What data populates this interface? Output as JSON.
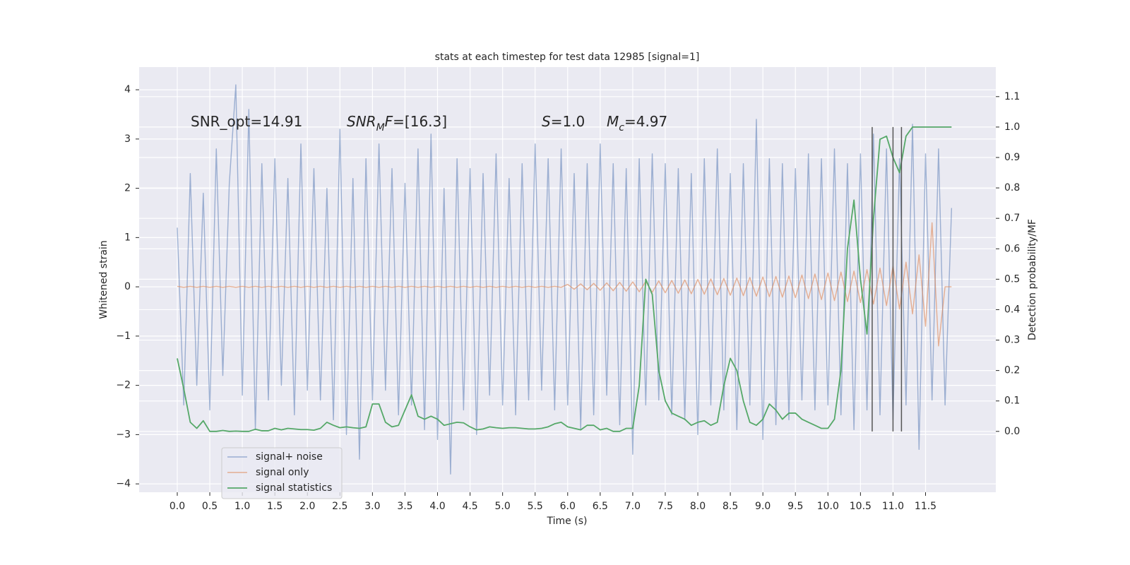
{
  "chart_data": {
    "type": "line",
    "title": "stats at each timestep for test data 12985 [signal=1]",
    "x_label": "Time (s)",
    "y_label": "Whitened strain",
    "y2_label": "Detection probability/MF",
    "xlim": [
      -0.586,
      12.58
    ],
    "ylim": [
      -4.17,
      4.46
    ],
    "y2lim": [
      -0.2,
      1.197
    ],
    "xticks": [
      {
        "value": 0,
        "label": "0.0"
      },
      0.5,
      {
        "value": 1,
        "label": "1.0"
      },
      1.5,
      {
        "value": 2,
        "label": "2.0"
      },
      2.5,
      {
        "value": 3,
        "label": "3.0"
      },
      3.5,
      {
        "value": 4,
        "label": "4.0"
      },
      4.5,
      {
        "value": 5,
        "label": "5.0"
      },
      5.5,
      {
        "value": 6,
        "label": "6.0"
      },
      6.5,
      {
        "value": 7,
        "label": "7.0"
      },
      7.5,
      {
        "value": 8,
        "label": "8.0"
      },
      8.5,
      {
        "value": 9,
        "label": "9.0"
      },
      9.5,
      {
        "value": 10,
        "label": "10.0"
      },
      10.5,
      {
        "value": 11,
        "label": "11.0"
      },
      11.5
    ],
    "yticks": [
      {
        "value": -4,
        "label": "−4"
      },
      {
        "value": -3,
        "label": "−3"
      },
      {
        "value": -2,
        "label": "−2"
      },
      {
        "value": -1,
        "label": "−1"
      },
      0,
      1,
      2,
      3,
      4
    ],
    "y2ticks": [
      {
        "value": 0,
        "label": "0.0"
      },
      0.1,
      0.2,
      0.3,
      0.4,
      0.5,
      0.6,
      0.7,
      0.8,
      0.9,
      {
        "value": 1,
        "label": "1.0"
      },
      1.1
    ],
    "grid": true,
    "legend": "lower left",
    "x": [
      0.0,
      0.1,
      0.2,
      0.3,
      0.4,
      0.5,
      0.6,
      0.7,
      0.8,
      0.9,
      1.0,
      1.1,
      1.2,
      1.3,
      1.4,
      1.5,
      1.6,
      1.7,
      1.8,
      1.9,
      2.0,
      2.1,
      2.2,
      2.3,
      2.4,
      2.5,
      2.6,
      2.7,
      2.8,
      2.9,
      3.0,
      3.1,
      3.2,
      3.3,
      3.4,
      3.5,
      3.6,
      3.7,
      3.8,
      3.9,
      4.0,
      4.1,
      4.2,
      4.3,
      4.4,
      4.5,
      4.6,
      4.7,
      4.8,
      4.9,
      5.0,
      5.1,
      5.2,
      5.3,
      5.4,
      5.5,
      5.6,
      5.7,
      5.8,
      5.9,
      6.0,
      6.1,
      6.2,
      6.3,
      6.4,
      6.5,
      6.6,
      6.7,
      6.8,
      6.9,
      7.0,
      7.1,
      7.2,
      7.3,
      7.4,
      7.5,
      7.6,
      7.7,
      7.8,
      7.9,
      8.0,
      8.1,
      8.2,
      8.3,
      8.4,
      8.5,
      8.6,
      8.7,
      8.8,
      8.9,
      9.0,
      9.1,
      9.2,
      9.3,
      9.4,
      9.5,
      9.6,
      9.7,
      9.8,
      9.9,
      10.0,
      10.1,
      10.2,
      10.3,
      10.4,
      10.5,
      10.6,
      10.7,
      10.8,
      10.9,
      11.0,
      11.1,
      11.2,
      11.3,
      11.4,
      11.5,
      11.6,
      11.7,
      11.8,
      11.9
    ],
    "series": [
      {
        "name": "signal+ noise",
        "color": "#4c72b0",
        "values": [
          1.2,
          -2.4,
          2.3,
          -2.0,
          1.9,
          -2.5,
          2.8,
          -1.8,
          2.1,
          4.1,
          -2.2,
          3.6,
          -2.9,
          2.5,
          -2.3,
          2.6,
          -2.0,
          2.2,
          -2.6,
          2.9,
          -2.1,
          2.4,
          -2.3,
          2.0,
          -2.7,
          3.2,
          -3.0,
          2.2,
          -3.5,
          2.6,
          -2.3,
          2.9,
          -2.1,
          2.4,
          -2.6,
          2.1,
          -2.4,
          2.8,
          -2.9,
          3.1,
          -3.1,
          2.0,
          -3.8,
          2.6,
          -2.5,
          2.4,
          -3.0,
          2.3,
          -2.2,
          2.7,
          -2.4,
          2.2,
          -2.6,
          2.5,
          -2.3,
          2.9,
          -2.1,
          2.6,
          -2.5,
          2.8,
          -2.4,
          2.3,
          -2.9,
          2.5,
          -2.6,
          2.9,
          -2.2,
          2.5,
          -2.8,
          2.4,
          -3.4,
          2.6,
          -2.4,
          2.7,
          -2.3,
          2.5,
          -2.6,
          2.4,
          -2.7,
          2.3,
          -3.0,
          2.6,
          -2.4,
          2.8,
          -2.5,
          2.3,
          -2.9,
          2.5,
          -2.4,
          3.4,
          -3.1,
          2.6,
          -2.8,
          2.5,
          -2.7,
          2.4,
          -2.3,
          2.7,
          -2.5,
          2.6,
          -2.4,
          2.8,
          -2.6,
          2.5,
          -2.9,
          2.7,
          -2.5,
          3.1,
          -2.6,
          2.8,
          -2.7,
          2.6,
          -2.4,
          3.3,
          -3.3,
          2.7,
          -2.3,
          2.8,
          -2.4,
          1.6
        ]
      },
      {
        "name": "signal only",
        "color": "#dd8452",
        "values": [
          0.01,
          -0.01,
          0.01,
          -0.01,
          0.01,
          -0.01,
          0.01,
          -0.01,
          0.01,
          -0.01,
          0.01,
          -0.01,
          0.01,
          -0.01,
          0.01,
          -0.01,
          0.01,
          -0.01,
          0.01,
          -0.01,
          0.01,
          -0.01,
          0.01,
          -0.01,
          0.01,
          -0.01,
          0.01,
          -0.01,
          0.01,
          -0.01,
          0.01,
          -0.01,
          0.01,
          -0.01,
          0.01,
          -0.01,
          0.01,
          -0.01,
          0.01,
          -0.01,
          0.01,
          -0.01,
          0.01,
          -0.01,
          0.01,
          -0.01,
          0.01,
          -0.01,
          0.01,
          -0.01,
          0.01,
          -0.01,
          0.01,
          -0.01,
          0.01,
          -0.01,
          0.01,
          -0.01,
          0.01,
          -0.01,
          0.05,
          -0.05,
          0.06,
          -0.06,
          0.07,
          -0.07,
          0.08,
          -0.08,
          0.09,
          -0.09,
          0.1,
          -0.1,
          0.11,
          -0.11,
          0.12,
          -0.12,
          0.13,
          -0.13,
          0.14,
          -0.14,
          0.15,
          -0.15,
          0.16,
          -0.16,
          0.17,
          -0.17,
          0.18,
          -0.18,
          0.19,
          -0.19,
          0.2,
          -0.2,
          0.21,
          -0.21,
          0.22,
          -0.22,
          0.24,
          -0.24,
          0.26,
          -0.26,
          0.28,
          -0.28,
          0.3,
          -0.3,
          0.32,
          -0.32,
          0.35,
          -0.35,
          0.38,
          -0.38,
          0.42,
          -0.45,
          0.5,
          -0.55,
          0.65,
          -0.8,
          1.3,
          -1.2,
          0.0,
          0.0
        ]
      },
      {
        "name": "signal statistics",
        "color": "#55a868",
        "axis": "y2",
        "values": [
          0.24,
          0.14,
          0.03,
          0.01,
          0.035,
          0.0,
          0.0,
          0.003,
          0.0,
          0.001,
          0.0,
          0.0,
          0.007,
          0.002,
          0.002,
          0.01,
          0.005,
          0.01,
          0.008,
          0.006,
          0.006,
          0.004,
          0.01,
          0.03,
          0.02,
          0.012,
          0.015,
          0.012,
          0.01,
          0.015,
          0.09,
          0.09,
          0.03,
          0.015,
          0.02,
          0.07,
          0.12,
          0.05,
          0.04,
          0.05,
          0.04,
          0.02,
          0.025,
          0.03,
          0.028,
          0.015,
          0.005,
          0.008,
          0.015,
          0.012,
          0.01,
          0.012,
          0.012,
          0.01,
          0.008,
          0.008,
          0.01,
          0.015,
          0.025,
          0.03,
          0.015,
          0.01,
          0.005,
          0.02,
          0.02,
          0.005,
          0.01,
          0.0,
          0.0,
          0.01,
          0.01,
          0.15,
          0.5,
          0.45,
          0.2,
          0.1,
          0.06,
          0.05,
          0.04,
          0.02,
          0.03,
          0.035,
          0.02,
          0.03,
          0.15,
          0.24,
          0.2,
          0.1,
          0.03,
          0.02,
          0.04,
          0.09,
          0.07,
          0.04,
          0.06,
          0.06,
          0.04,
          0.03,
          0.02,
          0.01,
          0.01,
          0.04,
          0.2,
          0.6,
          0.76,
          0.5,
          0.32,
          0.7,
          0.96,
          0.97,
          0.9,
          0.85,
          0.97,
          1.0,
          1.0,
          1.0,
          1.0,
          1.0,
          1.0,
          1.0
        ]
      }
    ],
    "vlines": [
      10.68,
      11.0,
      11.13
    ],
    "vline_span": [
      0,
      1.0
    ],
    "vline_color": "#555555",
    "annotations": [
      {
        "parts": [
          {
            "text": "SNR_opt=14.91"
          }
        ]
      },
      {
        "parts": [
          {
            "text": "SNR",
            "italic": true
          },
          {
            "text": "M",
            "italic": true,
            "sub": true
          },
          {
            "text": "F",
            "italic": true
          },
          {
            "text": "=[16.3]"
          }
        ]
      },
      {
        "parts": [
          {
            "text": "S",
            "italic": true
          },
          {
            "text": "=1.0"
          }
        ]
      },
      {
        "parts": [
          {
            "text": "M",
            "italic": true
          },
          {
            "text": "c",
            "italic": true,
            "sub": true
          },
          {
            "text": "=4.97"
          }
        ]
      }
    ]
  }
}
